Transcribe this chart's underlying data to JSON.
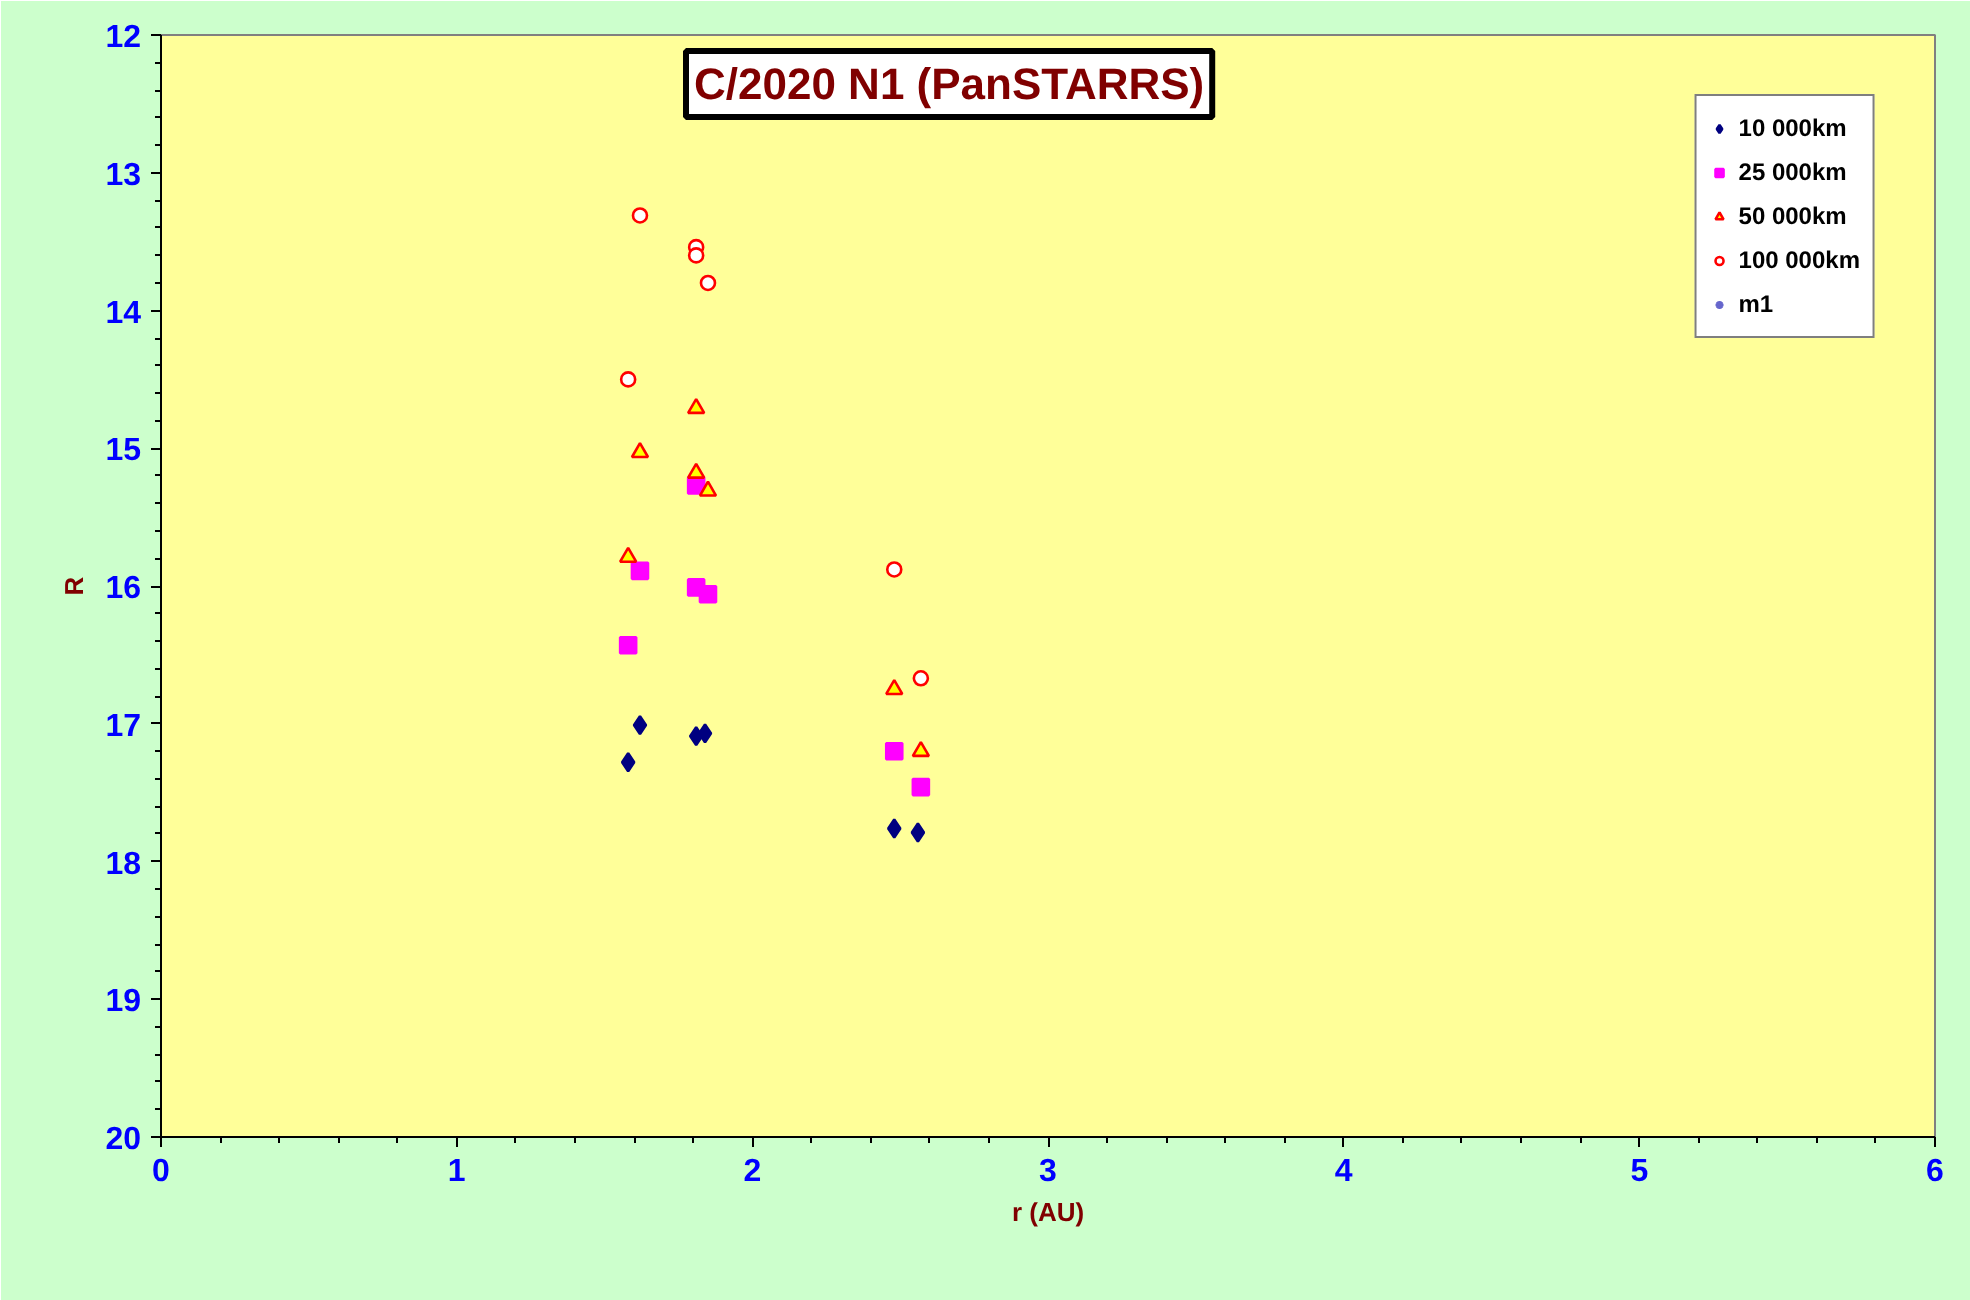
{
  "chart_data": {
    "type": "scatter",
    "title": "C/2020 N1 (PanSTARRS)",
    "xlabel": "r (AU)",
    "ylabel": "R",
    "xlim": [
      0,
      6
    ],
    "xticks": [
      0,
      1,
      2,
      3,
      4,
      5,
      6
    ],
    "ylim": [
      20,
      12
    ],
    "yticks": [
      12,
      13,
      14,
      15,
      16,
      17,
      18,
      19,
      20
    ],
    "grid": false,
    "legend": "top right",
    "series": [
      {
        "name": "10 000km",
        "color": "#000080",
        "marker": "diamond",
        "x": [
          1.58,
          1.62,
          1.81,
          1.84,
          2.48,
          2.56
        ],
        "values": [
          17.28,
          17.01,
          17.09,
          17.07,
          17.76,
          17.79
        ]
      },
      {
        "name": "25 000km",
        "color": "#ff00ff",
        "marker": "square",
        "x": [
          1.58,
          1.62,
          1.81,
          1.85,
          1.81,
          2.48,
          2.57
        ],
        "values": [
          16.43,
          15.89,
          16.01,
          16.06,
          15.27,
          17.2,
          17.46
        ]
      },
      {
        "name": "50 000km",
        "color": "#ff0000",
        "marker": "triangle",
        "x": [
          1.58,
          1.62,
          1.81,
          1.81,
          1.85,
          2.48,
          2.57
        ],
        "values": [
          15.79,
          15.03,
          14.71,
          15.18,
          15.31,
          16.75,
          17.2
        ]
      },
      {
        "name": "100 000km",
        "color": "#ff0000",
        "marker": "circle",
        "x": [
          1.58,
          1.62,
          1.81,
          1.81,
          1.85,
          2.48,
          2.57
        ],
        "values": [
          14.5,
          13.31,
          13.54,
          13.6,
          13.8,
          15.88,
          16.67
        ]
      },
      {
        "name": "m1",
        "color": "#6666cc",
        "marker": "star"
      }
    ]
  }
}
